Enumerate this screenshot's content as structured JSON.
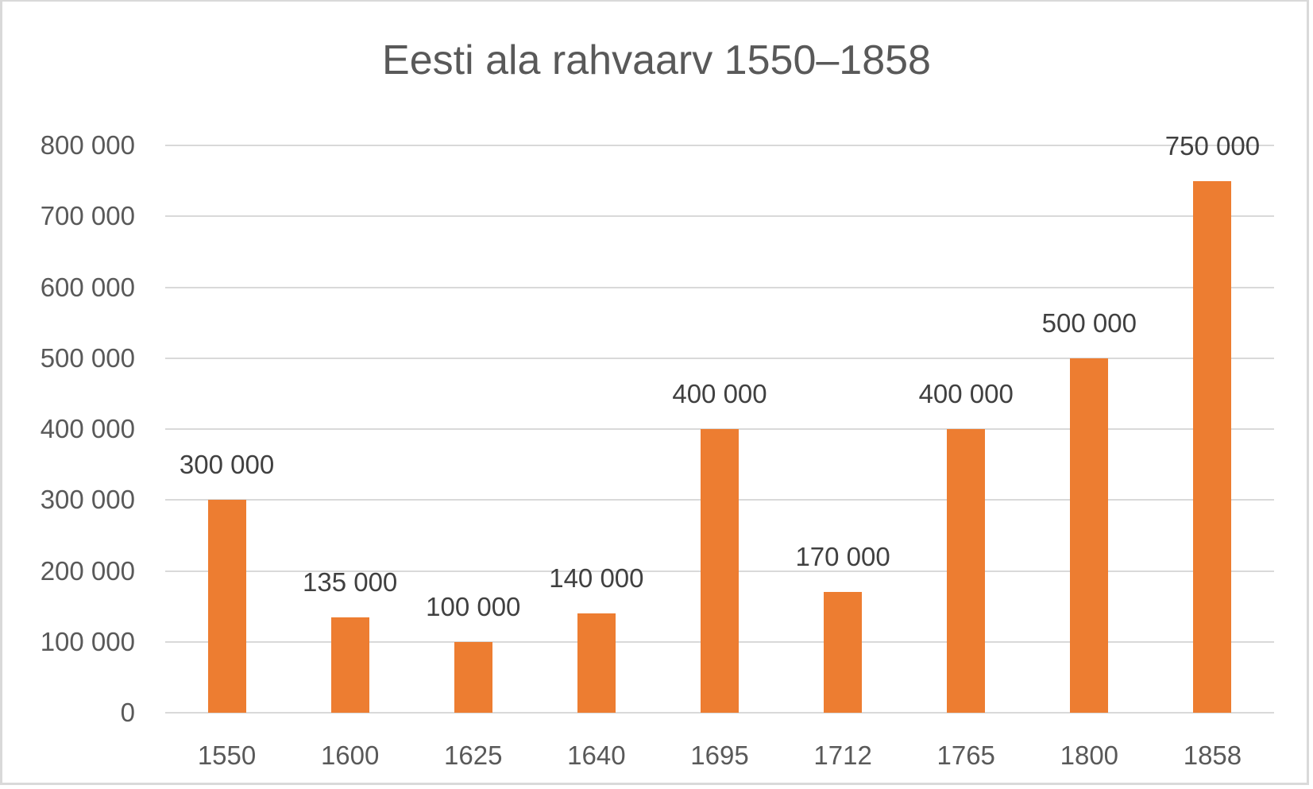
{
  "chart_data": {
    "type": "bar",
    "title": "Eesti ala rahvaarv 1550–1858",
    "xlabel": "",
    "ylabel": "",
    "categories": [
      "1550",
      "1600",
      "1625",
      "1640",
      "1695",
      "1712",
      "1765",
      "1800",
      "1858"
    ],
    "values": [
      300000,
      135000,
      100000,
      140000,
      400000,
      170000,
      400000,
      500000,
      750000
    ],
    "data_labels": [
      "300 000",
      "135 000",
      "100 000",
      "140 000",
      "400 000",
      "170 000",
      "400 000",
      "500 000",
      "750 000"
    ],
    "ylim": [
      0,
      800000
    ],
    "yticks": [
      "0",
      "100 000",
      "200 000",
      "300 000",
      "400 000",
      "500 000",
      "600 000",
      "700 000",
      "800 000"
    ],
    "grid": true,
    "legend": "none",
    "bar_color": "#ed7d31"
  }
}
